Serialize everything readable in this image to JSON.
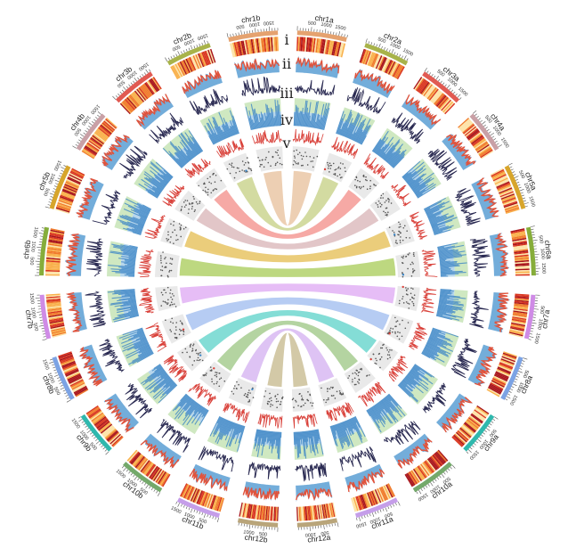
{
  "chart_data": {
    "type": "circos",
    "title": "",
    "track_labels": [
      "i",
      "ii",
      "iii",
      "iv",
      "v"
    ],
    "chromosomes": [
      {
        "name": "chr1a",
        "size": 1800,
        "color": "#e5a26f"
      },
      {
        "name": "chr2a",
        "size": 1650,
        "color": "#a8b34a"
      },
      {
        "name": "chr3a",
        "size": 1600,
        "color": "#e15a52"
      },
      {
        "name": "chr4a",
        "size": 1550,
        "color": "#c9a0a6"
      },
      {
        "name": "chr5a",
        "size": 1650,
        "color": "#d7a52b"
      },
      {
        "name": "chr6a",
        "size": 1750,
        "color": "#86ad3a"
      },
      {
        "name": "chr7a",
        "size": 1600,
        "color": "#cf8be6"
      },
      {
        "name": "chr8a",
        "size": 1650,
        "color": "#7ca3e4"
      },
      {
        "name": "chr9a",
        "size": 1600,
        "color": "#2fb8ad"
      },
      {
        "name": "chr10a",
        "size": 1650,
        "color": "#74a96b"
      },
      {
        "name": "chr11a",
        "size": 1600,
        "color": "#c59ee9"
      },
      {
        "name": "chr12a",
        "size": 1450,
        "color": "#b9a57a"
      },
      {
        "name": "chr12b",
        "size": 1450,
        "color": "#b9a57a"
      },
      {
        "name": "chr11b",
        "size": 1600,
        "color": "#c59ee9"
      },
      {
        "name": "chr10b",
        "size": 1650,
        "color": "#74a96b"
      },
      {
        "name": "chr9b",
        "size": 1600,
        "color": "#2fb8ad"
      },
      {
        "name": "chr8b",
        "size": 1650,
        "color": "#7ca3e4"
      },
      {
        "name": "chr7b",
        "size": 1600,
        "color": "#cf8be6"
      },
      {
        "name": "chr6b",
        "size": 1750,
        "color": "#86ad3a"
      },
      {
        "name": "chr5b",
        "size": 1650,
        "color": "#d7a52b"
      },
      {
        "name": "chr4b",
        "size": 1550,
        "color": "#c9a0a6"
      },
      {
        "name": "chr3b",
        "size": 1600,
        "color": "#e15a52"
      },
      {
        "name": "chr2b",
        "size": 1650,
        "color": "#a8b34a"
      },
      {
        "name": "chr1b",
        "size": 1800,
        "color": "#e5a26f"
      }
    ],
    "tick_labels": [
      "500",
      "1000",
      "1500"
    ],
    "links": [
      {
        "from": "chr1a",
        "to": "chr1b",
        "color": "#eac7a6"
      },
      {
        "from": "chr2a",
        "to": "chr2b",
        "color": "#cbd591"
      },
      {
        "from": "chr3a",
        "to": "chr3b",
        "color": "#f49a95"
      },
      {
        "from": "chr4a",
        "to": "chr4b",
        "color": "#ddbcbe"
      },
      {
        "from": "chr5a",
        "to": "chr5b",
        "color": "#e8c464"
      },
      {
        "from": "chr6a",
        "to": "chr6b",
        "color": "#b2d16a"
      },
      {
        "from": "chr7a",
        "to": "chr7b",
        "color": "#e2b2f4"
      },
      {
        "from": "chr8a",
        "to": "chr8b",
        "color": "#a9c3f1"
      },
      {
        "from": "chr9a",
        "to": "chr9b",
        "color": "#6fd7cf"
      },
      {
        "from": "chr10a",
        "to": "chr10b",
        "color": "#a7cd91"
      },
      {
        "from": "chr11a",
        "to": "chr11b",
        "color": "#d8b9f2"
      },
      {
        "from": "chr12a",
        "to": "chr12b",
        "color": "#cbbf98"
      }
    ],
    "heat_colors": [
      "#fde3a7",
      "#f9b04a",
      "#f07a2a",
      "#d9351f",
      "#a8141a"
    ],
    "track_colors": {
      "density_fill": "#5a9fd4",
      "density_line": "#e0533c",
      "line_track": "#2a2a52",
      "bar_bg_green": "#cfe8c1",
      "bar_bg_blue": "#b7d6ec",
      "bar_fill": "#3d86c6",
      "spike_line": "#d9413a",
      "scatter_bg": "#e9e9e9",
      "scatter_points": "#555555"
    }
  }
}
